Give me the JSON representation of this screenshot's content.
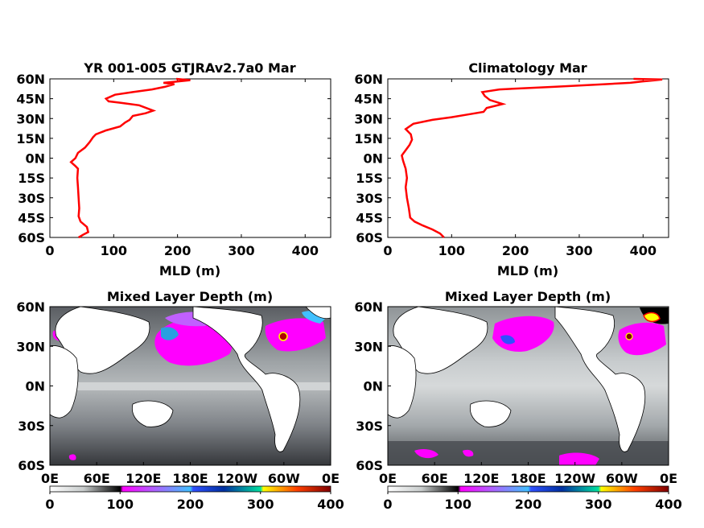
{
  "chart_data": [
    {
      "type": "line",
      "title": "YR 001-005 GTJRAv2.7a0 Mar",
      "xlabel": "MLD (m)",
      "ylabel": "",
      "xlim": [
        0,
        440
      ],
      "ylim": [
        -60,
        60
      ],
      "xticks": [
        "0",
        "100",
        "200",
        "300",
        "400"
      ],
      "yticks": [
        "60S",
        "45S",
        "30S",
        "15S",
        "0N",
        "15N",
        "30N",
        "45N",
        "60N"
      ],
      "line_color": "#ff0000",
      "series": [
        {
          "values": [
            [
              45,
              -60
            ],
            [
              52,
              -58
            ],
            [
              60,
              -56
            ],
            [
              58,
              -52
            ],
            [
              48,
              -48
            ],
            [
              45,
              -44
            ],
            [
              46,
              -38
            ],
            [
              45,
              -30
            ],
            [
              44,
              -22
            ],
            [
              43,
              -15
            ],
            [
              44,
              -8
            ],
            [
              40,
              -6
            ],
            [
              33,
              -3
            ],
            [
              40,
              0
            ],
            [
              44,
              4
            ],
            [
              55,
              8
            ],
            [
              62,
              12
            ],
            [
              68,
              16
            ],
            [
              72,
              18
            ],
            [
              88,
              21
            ],
            [
              110,
              24
            ],
            [
              118,
              27
            ],
            [
              125,
              29
            ],
            [
              130,
              32
            ],
            [
              150,
              34
            ],
            [
              162,
              36
            ],
            [
              140,
              40
            ],
            [
              110,
              42
            ],
            [
              92,
              43
            ],
            [
              88,
              45
            ],
            [
              102,
              48
            ],
            [
              130,
              50
            ],
            [
              160,
              52
            ],
            [
              180,
              54
            ],
            [
              195,
              56
            ],
            [
              178,
              57
            ],
            [
              200,
              58
            ],
            [
              220,
              59
            ],
            [
              198,
              60
            ]
          ]
        }
      ],
      "grid": false
    },
    {
      "type": "line",
      "title": "Climatology Mar",
      "xlabel": "MLD (m)",
      "ylabel": "",
      "xlim": [
        0,
        440
      ],
      "ylim": [
        -60,
        60
      ],
      "xticks": [
        "0",
        "100",
        "200",
        "300",
        "400"
      ],
      "yticks": [
        "60S",
        "45S",
        "30S",
        "15S",
        "0N",
        "15N",
        "30N",
        "45N",
        "60N"
      ],
      "line_color": "#ff0000",
      "series": [
        {
          "values": [
            [
              88,
              -60
            ],
            [
              82,
              -57
            ],
            [
              70,
              -54
            ],
            [
              55,
              -51
            ],
            [
              42,
              -48
            ],
            [
              35,
              -45
            ],
            [
              33,
              -38
            ],
            [
              30,
              -30
            ],
            [
              28,
              -22
            ],
            [
              30,
              -15
            ],
            [
              28,
              -8
            ],
            [
              24,
              -2
            ],
            [
              22,
              2
            ],
            [
              28,
              6
            ],
            [
              34,
              10
            ],
            [
              38,
              14
            ],
            [
              36,
              18
            ],
            [
              28,
              22
            ],
            [
              40,
              26
            ],
            [
              70,
              29
            ],
            [
              100,
              31
            ],
            [
              125,
              33
            ],
            [
              150,
              35
            ],
            [
              155,
              38
            ],
            [
              180,
              41
            ],
            [
              160,
              44
            ],
            [
              152,
              47
            ],
            [
              148,
              50
            ],
            [
              175,
              52
            ],
            [
              260,
              54
            ],
            [
              340,
              56
            ],
            [
              380,
              57
            ],
            [
              398,
              58
            ],
            [
              420,
              59
            ],
            [
              430,
              59.5
            ],
            [
              385,
              60
            ]
          ]
        }
      ],
      "grid": false
    },
    {
      "type": "heatmap",
      "title": "Mixed Layer Depth (m)",
      "xticks": [
        "0E",
        "60E",
        "120E",
        "180E",
        "120W",
        "60W",
        "0E"
      ],
      "yticks": [
        "60N",
        "30N",
        "0N",
        "30S",
        "60S"
      ],
      "colorbar": {
        "min": 0,
        "max": 400,
        "ticks": [
          "0",
          "100",
          "200",
          "300",
          "400"
        ]
      }
    },
    {
      "type": "heatmap",
      "title": "Mixed Layer Depth (m)",
      "xticks": [
        "0E",
        "60E",
        "120E",
        "180E",
        "120W",
        "60W",
        "0E"
      ],
      "yticks": [
        "60N",
        "30N",
        "0N",
        "30S",
        "60S"
      ],
      "colorbar": {
        "min": 0,
        "max": 400,
        "ticks": [
          "0",
          "100",
          "200",
          "300",
          "400"
        ]
      }
    }
  ]
}
